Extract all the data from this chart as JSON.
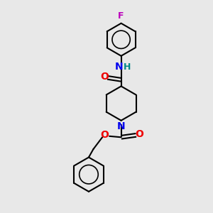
{
  "bg_color": "#e8e8e8",
  "bond_color": "#000000",
  "line_width": 1.5,
  "atom_colors": {
    "F": "#bb00bb",
    "N": "#0000ee",
    "O": "#ee0000",
    "H": "#008888"
  },
  "font_size": 8.5,
  "figsize": [
    3.0,
    3.0
  ],
  "dpi": 100
}
